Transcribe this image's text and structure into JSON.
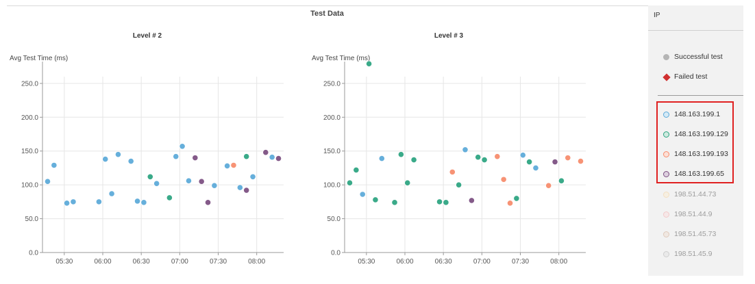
{
  "page": {
    "title": "Test Data"
  },
  "chart_data": [
    {
      "type": "scatter",
      "title": "Level # 2",
      "ylabel": "Avg Test Time (ms)",
      "xlabel": "",
      "ylim": [
        0,
        260
      ],
      "xlim": [
        "05:13",
        "08:21"
      ],
      "yticks": [
        0,
        50,
        100,
        150,
        200,
        250
      ],
      "yticklabels": [
        "0.0",
        "50.0",
        "100.0",
        "150.0",
        "200.0",
        "250.0"
      ],
      "xticks": [
        "05:30",
        "06:00",
        "06:30",
        "07:00",
        "07:30",
        "08:00"
      ],
      "grid": true,
      "series": [
        {
          "name": "148.163.199.1",
          "color": "#5aa9d9",
          "points": [
            {
              "x": "05:17",
              "y": 105
            },
            {
              "x": "05:22",
              "y": 129
            },
            {
              "x": "05:32",
              "y": 73
            },
            {
              "x": "05:37",
              "y": 75
            },
            {
              "x": "05:57",
              "y": 75
            },
            {
              "x": "06:02",
              "y": 138
            },
            {
              "x": "06:07",
              "y": 87
            },
            {
              "x": "06:12",
              "y": 145
            },
            {
              "x": "06:22",
              "y": 135
            },
            {
              "x": "06:27",
              "y": 76
            },
            {
              "x": "06:32",
              "y": 74
            },
            {
              "x": "06:42",
              "y": 102
            },
            {
              "x": "06:57",
              "y": 142
            },
            {
              "x": "07:02",
              "y": 157
            },
            {
              "x": "07:07",
              "y": 106
            },
            {
              "x": "07:27",
              "y": 99
            },
            {
              "x": "07:37",
              "y": 128
            },
            {
              "x": "07:47",
              "y": 96
            },
            {
              "x": "07:57",
              "y": 112
            },
            {
              "x": "08:12",
              "y": 141
            }
          ]
        },
        {
          "name": "148.163.199.129",
          "color": "#2aa37f",
          "points": [
            {
              "x": "06:37",
              "y": 112
            },
            {
              "x": "06:52",
              "y": 81
            },
            {
              "x": "07:52",
              "y": 142
            }
          ]
        },
        {
          "name": "148.163.199.193",
          "color": "#f78a6a",
          "points": [
            {
              "x": "07:42",
              "y": 129
            }
          ]
        },
        {
          "name": "148.163.199.65",
          "color": "#7a4d80",
          "points": [
            {
              "x": "07:12",
              "y": 140
            },
            {
              "x": "07:17",
              "y": 105
            },
            {
              "x": "07:22",
              "y": 74
            },
            {
              "x": "07:52",
              "y": 92
            },
            {
              "x": "08:07",
              "y": 148
            },
            {
              "x": "08:17",
              "y": 139
            }
          ]
        }
      ]
    },
    {
      "type": "scatter",
      "title": "Level # 3",
      "ylabel": "Avg Test Time (ms)",
      "xlabel": "",
      "ylim": [
        0,
        260
      ],
      "xlim": [
        "05:13",
        "08:21"
      ],
      "yticks": [
        0,
        50,
        100,
        150,
        200,
        250
      ],
      "yticklabels": [
        "0.0",
        "50.0",
        "100.0",
        "150.0",
        "200.0",
        "250.0"
      ],
      "xticks": [
        "05:30",
        "06:00",
        "06:30",
        "07:00",
        "07:30",
        "08:00"
      ],
      "grid": true,
      "series": [
        {
          "name": "148.163.199.1",
          "color": "#5aa9d9",
          "points": [
            {
              "x": "05:27",
              "y": 86
            },
            {
              "x": "05:42",
              "y": 139
            },
            {
              "x": "06:47",
              "y": 152
            },
            {
              "x": "07:32",
              "y": 144
            },
            {
              "x": "07:42",
              "y": 125
            }
          ]
        },
        {
          "name": "148.163.199.129",
          "color": "#2aa37f",
          "points": [
            {
              "x": "05:17",
              "y": 103
            },
            {
              "x": "05:22",
              "y": 122
            },
            {
              "x": "05:32",
              "y": 279
            },
            {
              "x": "05:37",
              "y": 78
            },
            {
              "x": "05:52",
              "y": 74
            },
            {
              "x": "05:57",
              "y": 145
            },
            {
              "x": "06:02",
              "y": 103
            },
            {
              "x": "06:07",
              "y": 137
            },
            {
              "x": "06:27",
              "y": 75
            },
            {
              "x": "06:32",
              "y": 74
            },
            {
              "x": "06:42",
              "y": 100
            },
            {
              "x": "06:57",
              "y": 141
            },
            {
              "x": "07:02",
              "y": 137
            },
            {
              "x": "07:27",
              "y": 80
            },
            {
              "x": "07:37",
              "y": 134
            },
            {
              "x": "08:02",
              "y": 106
            }
          ]
        },
        {
          "name": "148.163.199.193",
          "color": "#f78a6a",
          "points": [
            {
              "x": "06:37",
              "y": 119
            },
            {
              "x": "07:12",
              "y": 142
            },
            {
              "x": "07:17",
              "y": 108
            },
            {
              "x": "07:22",
              "y": 73
            },
            {
              "x": "07:52",
              "y": 99
            },
            {
              "x": "08:07",
              "y": 140
            },
            {
              "x": "08:17",
              "y": 135
            }
          ]
        },
        {
          "name": "148.163.199.65",
          "color": "#7a4d80",
          "points": [
            {
              "x": "06:52",
              "y": 77
            },
            {
              "x": "07:57",
              "y": 134
            }
          ]
        }
      ]
    }
  ],
  "sidebar": {
    "header": "IP",
    "status_legend": [
      {
        "label": "Successful test",
        "icon": "circle-icon",
        "color": "#b5b5b5"
      },
      {
        "label": "Failed test",
        "icon": "diamond-icon",
        "color": "#d03030"
      }
    ],
    "ip_items": [
      {
        "label": "148.163.199.1",
        "color": "#5aa9d9",
        "active": true
      },
      {
        "label": "148.163.199.129",
        "color": "#2aa37f",
        "active": true
      },
      {
        "label": "148.163.199.193",
        "color": "#f78a6a",
        "active": true
      },
      {
        "label": "148.163.199.65",
        "color": "#7a4d80",
        "active": true
      },
      {
        "label": "198.51.44.73",
        "color": "#f5c987",
        "active": false
      },
      {
        "label": "198.51.44.9",
        "color": "#f29a9a",
        "active": false
      },
      {
        "label": "198.51.45.73",
        "color": "#c99a7a",
        "active": false
      },
      {
        "label": "198.51.45.9",
        "color": "#a5a5a5",
        "active": false
      }
    ]
  }
}
